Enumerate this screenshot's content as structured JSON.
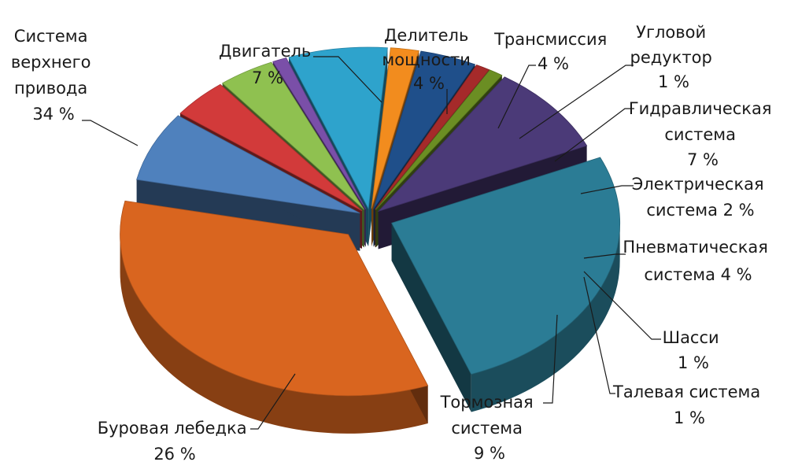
{
  "chart_data": {
    "type": "pie",
    "title": "",
    "slices": [
      {
        "label": "Двигатель",
        "value": 7,
        "value_label": "7 %",
        "color": "#4f81bd"
      },
      {
        "label": "Делитель мощности",
        "value": 4,
        "value_label": "4 %",
        "color": "#d23a3a"
      },
      {
        "label": "Трансмиссия",
        "value": 4,
        "value_label": "4 %",
        "color": "#8fc150"
      },
      {
        "label": "Угловой редуктор",
        "value": 1,
        "value_label": "1 %",
        "color": "#7a4fa8"
      },
      {
        "label": "Гидравлическая система",
        "value": 7,
        "value_label": "7 %",
        "color": "#2ea3cc"
      },
      {
        "label": "Электрическая система",
        "value": 2,
        "value_label": "2 %",
        "color": "#f28c1e"
      },
      {
        "label": "Пневматическая система",
        "value": 4,
        "value_label": "4 %",
        "color": "#1f4f8a"
      },
      {
        "label": "Шасси",
        "value": 1,
        "value_label": "1 %",
        "color": "#a52a2a"
      },
      {
        "label": "Талевая система",
        "value": 1,
        "value_label": "1 %",
        "color": "#6b8e23"
      },
      {
        "label": "Тормозная система",
        "value": 9,
        "value_label": "9 %",
        "color": "#4b3a78"
      },
      {
        "label": "Буровая лебедка",
        "value": 26,
        "value_label": "26 %",
        "color": "#2b7c95"
      },
      {
        "label": "Система верхнего привода",
        "value": 34,
        "value_label": "34 %",
        "color": "#d9651f"
      }
    ]
  }
}
